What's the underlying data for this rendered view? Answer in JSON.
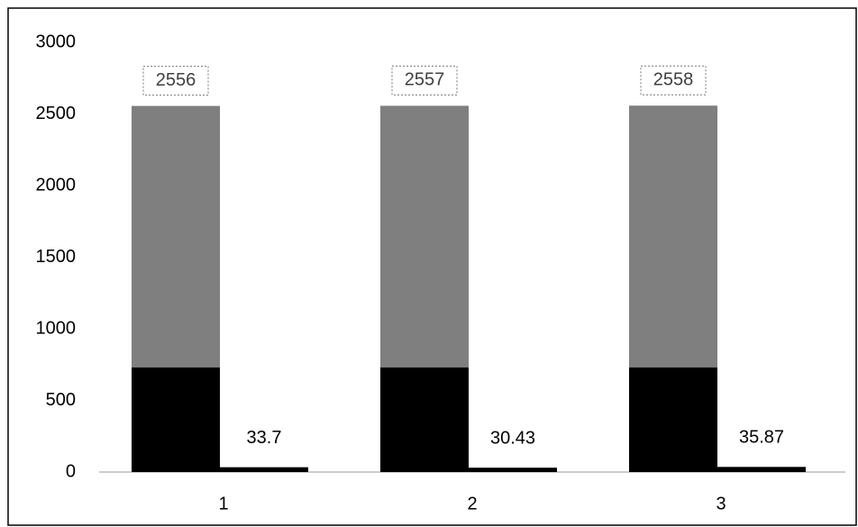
{
  "chart_data": {
    "type": "bar",
    "categories": [
      "1",
      "2",
      "3"
    ],
    "series": [
      {
        "color": "#7f7f7f",
        "values": [
          2556,
          2557,
          2558
        ],
        "data_labels": true,
        "label_box": true
      },
      {
        "color": "#000000",
        "values": [
          730,
          730,
          730
        ],
        "data_labels": false,
        "overlaps_previous": true
      },
      {
        "color": "#000000",
        "values": [
          33.7,
          30.43,
          35.87
        ],
        "data_labels": true
      }
    ],
    "ylim": [
      0,
      3000
    ],
    "yticks": [
      0,
      500,
      1000,
      1500,
      2000,
      2500,
      3000
    ],
    "grid": false
  }
}
